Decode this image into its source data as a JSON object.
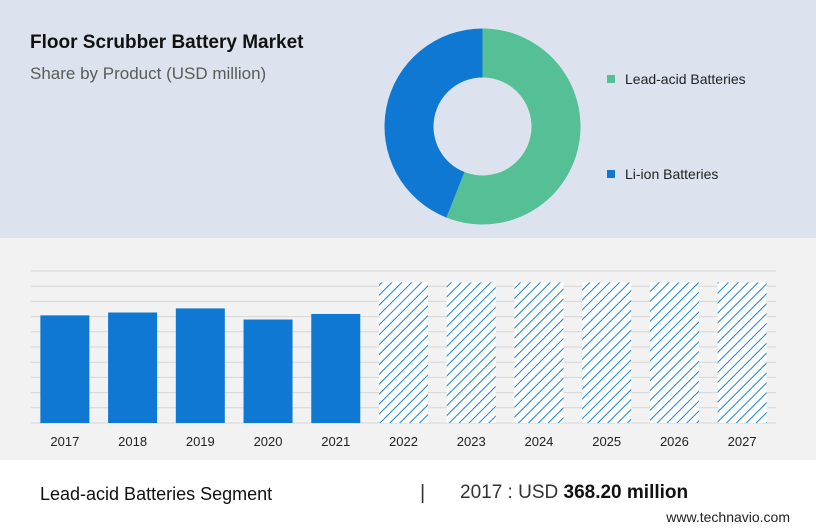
{
  "header": {
    "title": "Floor Scrubber Battery Market",
    "subtitle": "Share by Product (USD million)"
  },
  "legend": {
    "items": [
      {
        "label": "Lead-acid Batteries",
        "color": "#55c096"
      },
      {
        "label": "Li-ion Batteries",
        "color": "#0f78d2"
      }
    ]
  },
  "footer": {
    "segment": "Lead-acid Batteries Segment",
    "divider": "|",
    "stat_prefix": "2017 : USD",
    "stat_value": "368.20 million",
    "site": "www.technavio.com"
  },
  "chart_data": [
    {
      "type": "pie",
      "title": "Share by Product (USD million)",
      "labels": [
        "Lead-acid Batteries",
        "Li-ion Batteries"
      ],
      "values": [
        56,
        44
      ],
      "colors": [
        "#55c096",
        "#0f78d2"
      ],
      "donut": true
    },
    {
      "type": "bar",
      "categories": [
        "2017",
        "2018",
        "2019",
        "2020",
        "2021",
        "2022",
        "2023",
        "2024",
        "2025",
        "2026",
        "2027"
      ],
      "values": [
        368.2,
        378,
        392,
        354,
        373,
        null,
        null,
        null,
        null,
        null,
        null
      ],
      "forecast": [
        "2022",
        "2023",
        "2024",
        "2025",
        "2026",
        "2027"
      ],
      "bar_color": "#0f78d2",
      "grid": true,
      "ylim": [
        0,
        520
      ]
    }
  ]
}
